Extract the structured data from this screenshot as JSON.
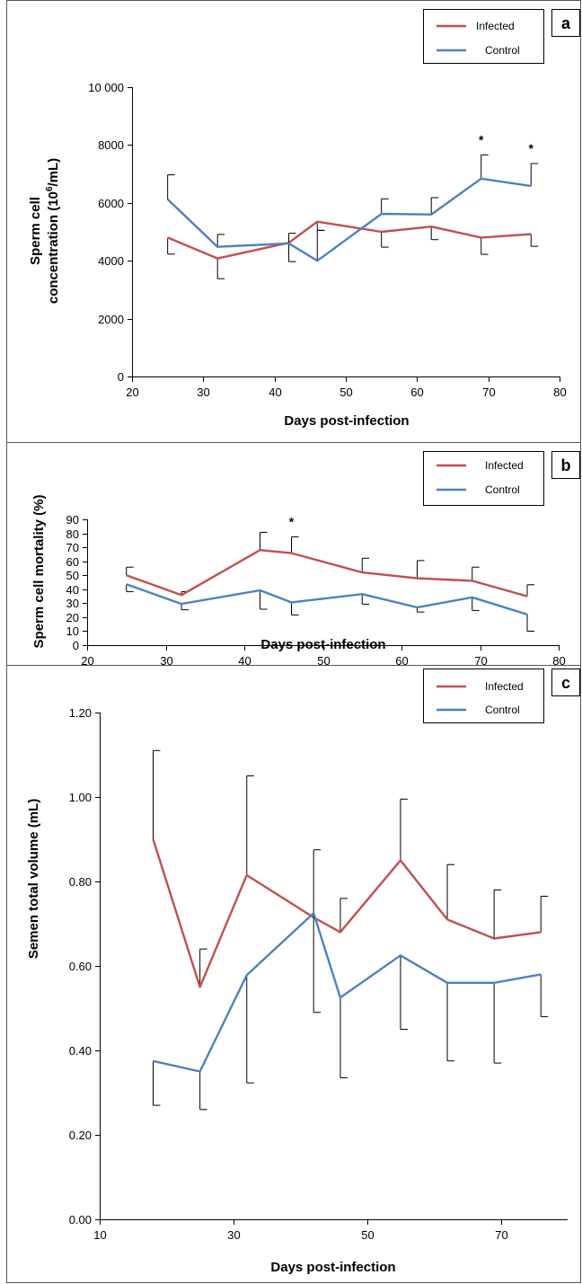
{
  "legend_labels": [
    "Infected",
    "Control"
  ],
  "colors": {
    "infected": "#c0504d",
    "control": "#4f81bd"
  },
  "chart_data": [
    {
      "type": "line",
      "panel_label": "a",
      "xlabel": "Days post-infection",
      "ylabel_line1": "Sperm cell",
      "ylabel_line2_pre": "concentration (10",
      "ylabel_line2_sup": "6",
      "ylabel_line2_post": "/mL)",
      "xlim": [
        20,
        80
      ],
      "ylim": [
        0,
        10000
      ],
      "xticks": [
        20,
        30,
        40,
        50,
        60,
        70,
        80
      ],
      "yticks": [
        0,
        2000,
        4000,
        6000,
        8000,
        10000
      ],
      "ytick_labels": [
        "0",
        "2000",
        "4000",
        "6000",
        "8000",
        "10 000"
      ],
      "significance_marker": "*",
      "significant_x": [
        69,
        76
      ],
      "series": [
        {
          "name": "Infected",
          "x": [
            25,
            32,
            42,
            46,
            55,
            62,
            69,
            76
          ],
          "values": [
            4800,
            4080,
            4620,
            5350,
            5000,
            5180,
            4800,
            4920
          ],
          "error": [
            570,
            700,
            650,
            300,
            530,
            450,
            580,
            420
          ],
          "error_dir": "down"
        },
        {
          "name": "Control",
          "x": [
            25,
            32,
            42,
            46,
            55,
            62,
            69,
            76
          ],
          "values": [
            6120,
            4480,
            4600,
            4000,
            5620,
            5600,
            6840,
            6580
          ],
          "error": [
            850,
            430,
            350,
            1050,
            520,
            580,
            820,
            780
          ],
          "error_dir": "up"
        }
      ]
    },
    {
      "type": "line",
      "panel_label": "b",
      "xlabel": "Days post-infection",
      "ylabel": "Sperm cell mortality (%)",
      "xlim": [
        20,
        80
      ],
      "ylim": [
        0,
        90
      ],
      "xticks": [
        20,
        30,
        40,
        50,
        60,
        70,
        80
      ],
      "yticks": [
        0,
        10,
        20,
        30,
        40,
        50,
        60,
        70,
        80,
        90
      ],
      "ytick_labels": [
        "0",
        "10",
        "20",
        "30",
        "40",
        "50",
        "60",
        "70",
        "80",
        "90"
      ],
      "significance_marker": "*",
      "significant_x": [
        46
      ],
      "series": [
        {
          "name": "Infected",
          "x": [
            25,
            32,
            42,
            46,
            55,
            62,
            69,
            76
          ],
          "values": [
            50,
            35.8,
            68,
            65.8,
            52,
            47.8,
            46,
            35
          ],
          "error": [
            5.8,
            2.5,
            12.7,
            11.7,
            10.2,
            12.7,
            9.8,
            8.2
          ],
          "error_dir": "up"
        },
        {
          "name": "Control",
          "x": [
            25,
            32,
            42,
            46,
            55,
            62,
            69,
            76
          ],
          "values": [
            43.5,
            29.5,
            39.2,
            30.6,
            36.5,
            27,
            34.2,
            22
          ],
          "error": [
            5.2,
            4.2,
            13.5,
            9,
            7.2,
            3.3,
            9.4,
            12
          ],
          "error_dir": "down"
        }
      ]
    },
    {
      "type": "line",
      "panel_label": "c",
      "xlabel": "Days post-infection",
      "ylabel": "Semen total volume (mL)",
      "xlim": [
        10,
        80
      ],
      "ylim": [
        0,
        1.2
      ],
      "xticks": [
        10,
        30,
        50,
        70
      ],
      "yticks": [
        0,
        0.2,
        0.4,
        0.6,
        0.8,
        1.0,
        1.2
      ],
      "ytick_labels": [
        "0.00",
        "0.20",
        "0.40",
        "0.60",
        "0.80",
        "1.00",
        "1.20"
      ],
      "series": [
        {
          "name": "Infected",
          "x": [
            18,
            25,
            32,
            42,
            46,
            55,
            62,
            69,
            76
          ],
          "values": [
            0.9,
            0.55,
            0.815,
            0.715,
            0.68,
            0.85,
            0.71,
            0.665,
            0.68
          ],
          "error": [
            0.21,
            0.09,
            0.235,
            0.16,
            0.08,
            0.145,
            0.13,
            0.115,
            0.085
          ],
          "error_dir": "up"
        },
        {
          "name": "Control",
          "x": [
            18,
            25,
            32,
            42,
            46,
            55,
            62,
            69,
            76
          ],
          "values": [
            0.375,
            0.35,
            0.578,
            0.725,
            0.525,
            0.625,
            0.56,
            0.56,
            0.58
          ],
          "error": [
            0.105,
            0.09,
            0.255,
            0.235,
            0.19,
            0.175,
            0.185,
            0.19,
            0.1
          ],
          "error_dir": "down"
        }
      ]
    }
  ]
}
